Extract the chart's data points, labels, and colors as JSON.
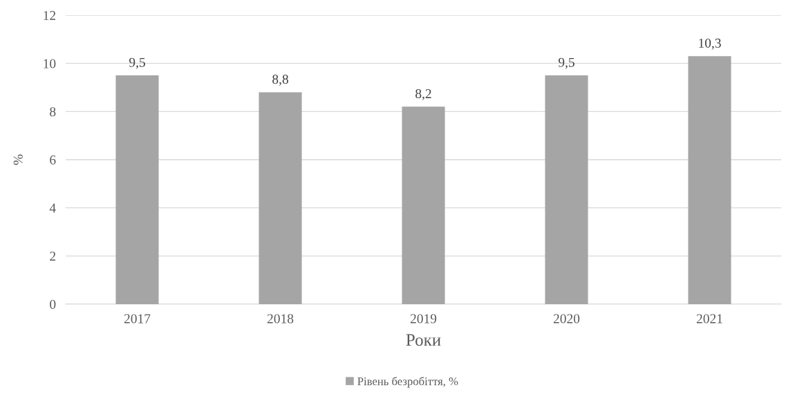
{
  "chart_data": {
    "type": "bar",
    "xlabel": "Роки",
    "ylabel": "%",
    "categories": [
      "2017",
      "2018",
      "2019",
      "2020",
      "2021"
    ],
    "series": [
      {
        "name": "Рівень безробіття, %",
        "color": "#a5a5a5",
        "values": [
          9.5,
          8.8,
          8.2,
          9.5,
          10.3
        ],
        "value_labels": [
          "9,5",
          "8,8",
          "8,2",
          "9,5",
          "10,3"
        ]
      }
    ],
    "ylim": [
      0,
      12
    ],
    "yticks": [
      0,
      2,
      4,
      6,
      8,
      10,
      12
    ],
    "grid": "y",
    "legend": "bottom"
  }
}
